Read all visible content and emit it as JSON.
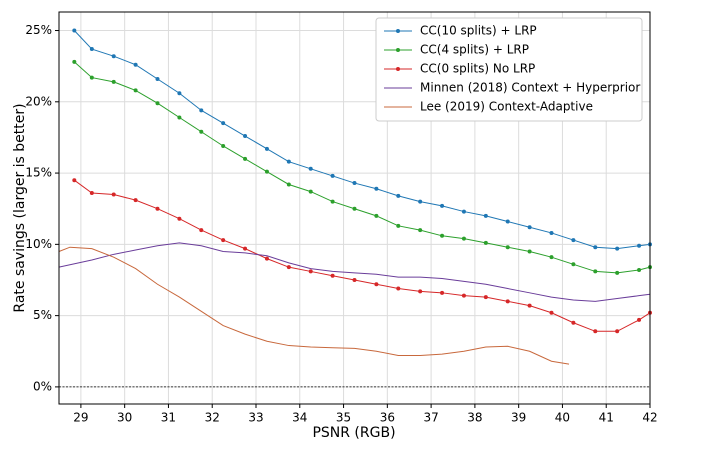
{
  "chart_data": {
    "type": "line",
    "xlabel": "PSNR (RGB)",
    "ylabel": "Rate savings (larger is better)",
    "xlim": [
      28.5,
      42
    ],
    "ylim": [
      -1.2,
      26.3
    ],
    "xticks": [
      29,
      30,
      31,
      32,
      33,
      34,
      35,
      36,
      37,
      38,
      39,
      40,
      41,
      42
    ],
    "yticks": [
      {
        "value": 0,
        "label": "0%"
      },
      {
        "value": 5,
        "label": "5%"
      },
      {
        "value": 10,
        "label": "10%"
      },
      {
        "value": 15,
        "label": "15%"
      },
      {
        "value": 20,
        "label": "20%"
      },
      {
        "value": 25,
        "label": "25%"
      }
    ],
    "grid": true,
    "legend": "upper right",
    "reference_line": 0,
    "series": [
      {
        "name": "CC(10 splits) + LRP",
        "color": "#1f77b4",
        "marker": true,
        "x": [
          28.85,
          29.25,
          29.75,
          30.25,
          30.75,
          31.25,
          31.75,
          32.25,
          32.75,
          33.25,
          33.75,
          34.25,
          34.75,
          35.25,
          35.75,
          36.25,
          36.75,
          37.25,
          37.75,
          38.25,
          38.75,
          39.25,
          39.75,
          40.25,
          40.75,
          41.25,
          41.75,
          42.0
        ],
        "values": [
          25.0,
          23.7,
          23.2,
          22.6,
          21.6,
          20.6,
          19.4,
          18.5,
          17.6,
          16.7,
          15.8,
          15.3,
          14.8,
          14.3,
          13.9,
          13.4,
          13.0,
          12.7,
          12.3,
          12.0,
          11.6,
          11.2,
          10.8,
          10.3,
          9.8,
          9.7,
          9.9,
          10.0
        ]
      },
      {
        "name": "CC(4 splits) + LRP",
        "color": "#2ca02c",
        "marker": true,
        "x": [
          28.85,
          29.25,
          29.75,
          30.25,
          30.75,
          31.25,
          31.75,
          32.25,
          32.75,
          33.25,
          33.75,
          34.25,
          34.75,
          35.25,
          35.75,
          36.25,
          36.75,
          37.25,
          37.75,
          38.25,
          38.75,
          39.25,
          39.75,
          40.25,
          40.75,
          41.25,
          41.75,
          42.0
        ],
        "values": [
          22.8,
          21.7,
          21.4,
          20.8,
          19.9,
          18.9,
          17.9,
          16.9,
          16.0,
          15.1,
          14.2,
          13.7,
          13.0,
          12.5,
          12.0,
          11.3,
          11.0,
          10.6,
          10.4,
          10.1,
          9.8,
          9.5,
          9.1,
          8.6,
          8.1,
          8.0,
          8.2,
          8.4
        ]
      },
      {
        "name": "CC(0 splits) No LRP",
        "color": "#d62728",
        "marker": true,
        "x": [
          28.85,
          29.25,
          29.75,
          30.25,
          30.75,
          31.25,
          31.75,
          32.25,
          32.75,
          33.25,
          33.75,
          34.25,
          34.75,
          35.25,
          35.75,
          36.25,
          36.75,
          37.25,
          37.75,
          38.25,
          38.75,
          39.25,
          39.75,
          40.25,
          40.75,
          41.25,
          41.75,
          42.0
        ],
        "values": [
          14.5,
          13.6,
          13.5,
          13.1,
          12.5,
          11.8,
          11.0,
          10.3,
          9.7,
          9.0,
          8.4,
          8.1,
          7.8,
          7.5,
          7.2,
          6.9,
          6.7,
          6.6,
          6.4,
          6.3,
          6.0,
          5.7,
          5.2,
          4.5,
          3.9,
          3.9,
          4.7,
          5.2
        ]
      },
      {
        "name": "Minnen (2018) Context + Hyperprior",
        "color": "#6a3d9a",
        "marker": false,
        "x": [
          28.5,
          29.25,
          29.75,
          30.25,
          30.75,
          31.25,
          31.75,
          32.25,
          32.75,
          33.25,
          33.75,
          34.25,
          34.75,
          35.25,
          35.75,
          36.25,
          36.75,
          37.25,
          37.75,
          38.25,
          38.75,
          39.25,
          39.75,
          40.25,
          40.75,
          41.25,
          41.75,
          42.0
        ],
        "values": [
          8.4,
          8.9,
          9.3,
          9.6,
          9.9,
          10.1,
          9.9,
          9.5,
          9.4,
          9.2,
          8.7,
          8.3,
          8.1,
          8.0,
          7.9,
          7.7,
          7.7,
          7.6,
          7.4,
          7.2,
          6.9,
          6.6,
          6.3,
          6.1,
          6.0,
          6.2,
          6.4,
          6.5
        ]
      },
      {
        "name": "Lee (2019) Context-Adaptive",
        "color": "#c8683c",
        "marker": false,
        "x": [
          28.5,
          28.75,
          29.25,
          29.75,
          30.25,
          30.75,
          31.25,
          31.75,
          32.25,
          32.75,
          33.25,
          33.75,
          34.25,
          34.75,
          35.25,
          35.75,
          36.25,
          36.75,
          37.25,
          37.75,
          38.25,
          38.75,
          39.25,
          39.75,
          40.15
        ],
        "values": [
          9.5,
          9.8,
          9.7,
          9.1,
          8.3,
          7.2,
          6.3,
          5.3,
          4.3,
          3.7,
          3.2,
          2.9,
          2.8,
          2.75,
          2.7,
          2.5,
          2.2,
          2.2,
          2.3,
          2.5,
          2.8,
          2.85,
          2.5,
          1.8,
          1.6
        ]
      }
    ]
  }
}
